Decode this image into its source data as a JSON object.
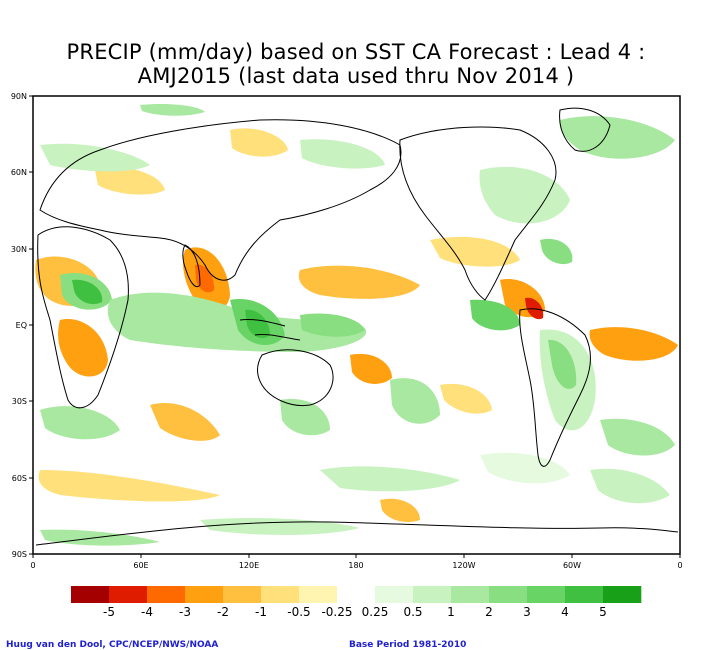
{
  "title_line1": "PRECIP (mm/day) based on SST CA Forecast : Lead 4 :",
  "title_line2": "AMJ2015 (last data used thru Nov 2014 )",
  "lat_labels": [
    "90N",
    "60N",
    "30N",
    "EQ",
    "30S",
    "60S",
    "90S"
  ],
  "lon_labels": [
    "0",
    "60E",
    "120E",
    "180",
    "120W",
    "60W",
    "0"
  ],
  "legend": {
    "colors": [
      "#a50000",
      "#e01c00",
      "#ff6a00",
      "#ffa010",
      "#ffc040",
      "#ffe07a",
      "#fff4b0",
      "#ffffff",
      "#e6fae0",
      "#c8f2c0",
      "#a8e8a0",
      "#88de80",
      "#68d465",
      "#40c040",
      "#18a018"
    ],
    "labels": [
      "-5",
      "-4",
      "-3",
      "-2",
      "-1",
      "-0.5",
      "-0.25",
      "0.25",
      "0.5",
      "1",
      "2",
      "3",
      "4",
      "5"
    ]
  },
  "credit_left": "Huug van den Dool, CPC/NCEP/NWS/NOAA",
  "credit_right": "Base Period 1981-2010"
}
